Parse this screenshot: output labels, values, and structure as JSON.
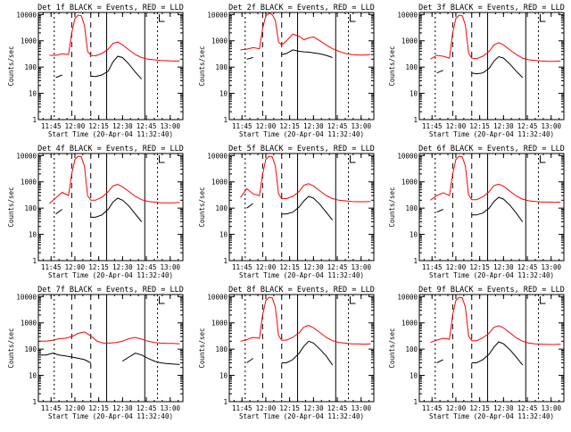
{
  "colors": {
    "events": "#000000",
    "lld": "#ff0000",
    "background": "#ffffff",
    "axis": "#000000"
  },
  "chart_data": [
    {
      "type": "line",
      "title": "Det 1f BLACK = Events, RED = LLD",
      "xlabel": "Start Time (20-Apr-04 11:32:40)",
      "ylabel": "Counts/sec",
      "xticks": [
        "11:45",
        "12:00",
        "12:15",
        "12:30",
        "12:45",
        "13:00"
      ],
      "yticks": [
        "1",
        "10",
        "100",
        "1000",
        "10000"
      ],
      "yscale": "log",
      "ylim": [
        1,
        12000
      ],
      "xlim": [
        "11:37",
        "13:08"
      ],
      "x": [
        "11:44",
        "11:48",
        "11:52",
        "11:56",
        "11:58",
        "12:00",
        "12:02",
        "12:04",
        "12:06",
        "12:08",
        "12:10",
        "12:13",
        "12:17",
        "12:21",
        "12:24",
        "12:27",
        "12:30",
        "12:34",
        "12:38",
        "12:42",
        "12:46",
        "12:50",
        "12:54",
        "12:58",
        "13:02",
        "13:06"
      ],
      "series": [
        {
          "name": "LLD",
          "values": [
            280,
            280,
            320,
            300,
            2000,
            7000,
            9500,
            9000,
            4000,
            400,
            280,
            270,
            330,
            480,
            800,
            900,
            700,
            450,
            300,
            230,
            200,
            190,
            180,
            175,
            170,
            170
          ]
        },
        {
          "name": "Events",
          "values": [
            null,
            40,
            50,
            null,
            null,
            null,
            null,
            null,
            null,
            null,
            45,
            44,
            50,
            70,
            160,
            260,
            230,
            130,
            65,
            35,
            null,
            null,
            null,
            null,
            null,
            null
          ]
        }
      ]
    },
    {
      "type": "line",
      "title": "Det 2f BLACK = Events, RED = LLD",
      "xlabel": "Start Time (20-Apr-04 11:32:40)",
      "ylabel": "Counts/sec",
      "xticks": [
        "11:45",
        "12:00",
        "12:15",
        "12:30",
        "12:45",
        "13:00"
      ],
      "yticks": [
        "1",
        "10",
        "100",
        "1000",
        "10000"
      ],
      "yscale": "log",
      "ylim": [
        1,
        12000
      ],
      "xlim": [
        "11:37",
        "13:08"
      ],
      "x": [
        "11:44",
        "11:48",
        "11:52",
        "11:56",
        "11:58",
        "12:00",
        "12:02",
        "12:04",
        "12:06",
        "12:08",
        "12:10",
        "12:13",
        "12:17",
        "12:21",
        "12:24",
        "12:27",
        "12:30",
        "12:34",
        "12:38",
        "12:42",
        "12:46",
        "12:50",
        "12:54",
        "12:58",
        "13:02",
        "13:06"
      ],
      "series": [
        {
          "name": "LLD",
          "values": [
            450,
            480,
            550,
            500,
            3000,
            9000,
            11000,
            10000,
            6000,
            900,
            700,
            1000,
            1800,
            1500,
            1100,
            1300,
            1400,
            1000,
            700,
            500,
            400,
            330,
            300,
            290,
            290,
            300
          ]
        },
        {
          "name": "Events",
          "values": [
            null,
            200,
            230,
            null,
            null,
            null,
            null,
            null,
            null,
            null,
            300,
            330,
            450,
            400,
            380,
            370,
            350,
            320,
            280,
            230,
            null,
            null,
            null,
            null,
            null,
            null
          ]
        }
      ]
    },
    {
      "type": "line",
      "title": "Det 3f BLACK = Events, RED = LLD",
      "xlabel": "Start Time (20-Apr-04 11:32:40)",
      "ylabel": "Counts/sec",
      "xticks": [
        "11:45",
        "12:00",
        "12:15",
        "12:30",
        "12:45",
        "13:00"
      ],
      "yticks": [
        "1",
        "10",
        "100",
        "1000",
        "10000"
      ],
      "yscale": "log",
      "ylim": [
        1,
        12000
      ],
      "xlim": [
        "11:37",
        "13:08"
      ],
      "x": [
        "11:44",
        "11:48",
        "11:52",
        "11:56",
        "11:58",
        "12:00",
        "12:02",
        "12:04",
        "12:06",
        "12:08",
        "12:10",
        "12:13",
        "12:17",
        "12:21",
        "12:24",
        "12:27",
        "12:30",
        "12:34",
        "12:38",
        "12:42",
        "12:46",
        "12:50",
        "12:54",
        "12:58",
        "13:02",
        "13:06"
      ],
      "series": [
        {
          "name": "LLD",
          "values": [
            200,
            280,
            260,
            220,
            2000,
            7000,
            9500,
            9000,
            4000,
            350,
            220,
            210,
            260,
            400,
            700,
            850,
            700,
            450,
            300,
            220,
            190,
            180,
            170,
            165,
            165,
            170
          ]
        },
        {
          "name": "Events",
          "values": [
            null,
            60,
            75,
            null,
            null,
            null,
            null,
            null,
            null,
            null,
            60,
            55,
            60,
            90,
            170,
            250,
            220,
            130,
            70,
            40,
            null,
            null,
            null,
            null,
            null,
            null
          ]
        }
      ]
    },
    {
      "type": "line",
      "title": "Det 4f BLACK = Events, RED = LLD",
      "xlabel": "Start Time (20-Apr-04 11:32:40)",
      "ylabel": "Counts/sec",
      "xticks": [
        "11:45",
        "12:00",
        "12:15",
        "12:30",
        "12:45",
        "13:00"
      ],
      "yticks": [
        "1",
        "10",
        "100",
        "1000",
        "10000"
      ],
      "yscale": "log",
      "ylim": [
        1,
        12000
      ],
      "xlim": [
        "11:37",
        "13:08"
      ],
      "x": [
        "11:44",
        "11:48",
        "11:52",
        "11:56",
        "11:58",
        "12:00",
        "12:02",
        "12:04",
        "12:06",
        "12:08",
        "12:10",
        "12:13",
        "12:17",
        "12:21",
        "12:24",
        "12:27",
        "12:30",
        "12:34",
        "12:38",
        "12:42",
        "12:46",
        "12:50",
        "12:54",
        "12:58",
        "13:02",
        "13:06"
      ],
      "series": [
        {
          "name": "LLD",
          "values": [
            150,
            250,
            400,
            300,
            2000,
            7000,
            9500,
            9000,
            4000,
            300,
            200,
            200,
            260,
            420,
            700,
            800,
            650,
            430,
            280,
            210,
            180,
            170,
            160,
            160,
            160,
            165
          ]
        },
        {
          "name": "Events",
          "values": [
            null,
            60,
            90,
            null,
            null,
            null,
            null,
            null,
            null,
            null,
            45,
            45,
            55,
            90,
            170,
            240,
            200,
            120,
            60,
            30,
            null,
            null,
            null,
            null,
            null,
            null
          ]
        }
      ]
    },
    {
      "type": "line",
      "title": "Det 5f BLACK = Events, RED = LLD",
      "xlabel": "Start Time (20-Apr-04 11:32:40)",
      "ylabel": "Counts/sec",
      "xticks": [
        "11:45",
        "12:00",
        "12:15",
        "12:30",
        "12:45",
        "13:00"
      ],
      "yticks": [
        "1",
        "10",
        "100",
        "1000",
        "10000"
      ],
      "yscale": "log",
      "ylim": [
        1,
        12000
      ],
      "xlim": [
        "11:37",
        "13:08"
      ],
      "x": [
        "11:44",
        "11:48",
        "11:52",
        "11:56",
        "11:58",
        "12:00",
        "12:02",
        "12:04",
        "12:06",
        "12:08",
        "12:10",
        "12:13",
        "12:17",
        "12:21",
        "12:24",
        "12:27",
        "12:30",
        "12:34",
        "12:38",
        "12:42",
        "12:46",
        "12:50",
        "12:54",
        "12:58",
        "13:02",
        "13:06"
      ],
      "series": [
        {
          "name": "LLD",
          "values": [
            250,
            550,
            350,
            300,
            2000,
            7000,
            9500,
            9000,
            4000,
            350,
            230,
            230,
            280,
            430,
            750,
            850,
            700,
            450,
            300,
            230,
            200,
            190,
            180,
            175,
            175,
            180
          ]
        },
        {
          "name": "Events",
          "values": [
            null,
            100,
            150,
            null,
            null,
            null,
            null,
            null,
            null,
            null,
            60,
            60,
            70,
            110,
            190,
            280,
            240,
            140,
            70,
            35,
            null,
            null,
            null,
            null,
            null,
            null
          ]
        }
      ]
    },
    {
      "type": "line",
      "title": "Det 6f BLACK = Events, RED = LLD",
      "xlabel": "Start Time (20-Apr-04 11:32:40)",
      "ylabel": "Counts/sec",
      "xticks": [
        "11:45",
        "12:00",
        "12:15",
        "12:30",
        "12:45",
        "13:00"
      ],
      "yticks": [
        "1",
        "10",
        "100",
        "1000",
        "10000"
      ],
      "yscale": "log",
      "ylim": [
        1,
        12000
      ],
      "xlim": [
        "11:37",
        "13:08"
      ],
      "x": [
        "11:44",
        "11:48",
        "11:52",
        "11:56",
        "11:58",
        "12:00",
        "12:02",
        "12:04",
        "12:06",
        "12:08",
        "12:10",
        "12:13",
        "12:17",
        "12:21",
        "12:24",
        "12:27",
        "12:30",
        "12:34",
        "12:38",
        "12:42",
        "12:46",
        "12:50",
        "12:54",
        "12:58",
        "13:02",
        "13:06"
      ],
      "series": [
        {
          "name": "LLD",
          "values": [
            200,
            300,
            380,
            300,
            2000,
            7000,
            9500,
            9000,
            4000,
            320,
            210,
            210,
            270,
            420,
            720,
            820,
            680,
            440,
            290,
            220,
            190,
            180,
            170,
            170,
            165,
            170
          ]
        },
        {
          "name": "Events",
          "values": [
            null,
            70,
            90,
            null,
            null,
            null,
            null,
            null,
            null,
            null,
            55,
            55,
            65,
            100,
            180,
            260,
            220,
            130,
            65,
            30,
            null,
            null,
            null,
            null,
            null,
            null
          ]
        }
      ]
    },
    {
      "type": "line",
      "title": "Det 7f BLACK = Events, RED = LLD",
      "xlabel": "Start Time (20-Apr-04 11:32:40)",
      "ylabel": "Counts/sec",
      "xticks": [
        "11:45",
        "12:00",
        "12:15",
        "12:30",
        "12:45",
        "13:00"
      ],
      "yticks": [
        "1",
        "10",
        "100",
        "1000",
        "10000"
      ],
      "yscale": "log",
      "ylim": [
        1,
        12000
      ],
      "xlim": [
        "11:37",
        "13:08"
      ],
      "x": [
        "11:38",
        "11:42",
        "11:46",
        "11:50",
        "11:54",
        "11:58",
        "12:02",
        "12:06",
        "12:10",
        "12:14",
        "12:18",
        "12:22",
        "12:26",
        "12:30",
        "12:34",
        "12:38",
        "12:42",
        "12:46",
        "12:50",
        "12:54",
        "12:58",
        "13:02",
        "13:06"
      ],
      "series": [
        {
          "name": "LLD",
          "values": [
            200,
            200,
            220,
            250,
            260,
            300,
            400,
            450,
            320,
            200,
            170,
            170,
            180,
            200,
            250,
            280,
            240,
            200,
            180,
            170,
            165,
            165,
            160
          ]
        },
        {
          "name": "Events",
          "values": [
            60,
            60,
            70,
            60,
            55,
            50,
            45,
            40,
            30,
            null,
            null,
            null,
            null,
            35,
            50,
            70,
            60,
            45,
            35,
            30,
            28,
            27,
            26
          ]
        }
      ]
    },
    {
      "type": "line",
      "title": "Det 8f BLACK = Events, RED = LLD",
      "xlabel": "Start Time (20-Apr-04 11:32:40)",
      "ylabel": "Counts/sec",
      "xticks": [
        "11:45",
        "12:00",
        "12:15",
        "12:30",
        "12:45",
        "13:00"
      ],
      "yticks": [
        "1",
        "10",
        "100",
        "1000",
        "10000"
      ],
      "yscale": "log",
      "ylim": [
        1,
        12000
      ],
      "xlim": [
        "11:37",
        "13:08"
      ],
      "x": [
        "11:44",
        "11:48",
        "11:52",
        "11:56",
        "11:58",
        "12:00",
        "12:02",
        "12:04",
        "12:06",
        "12:08",
        "12:10",
        "12:13",
        "12:17",
        "12:21",
        "12:24",
        "12:27",
        "12:30",
        "12:34",
        "12:38",
        "12:42",
        "12:46",
        "12:50",
        "12:54",
        "12:58",
        "13:02",
        "13:06"
      ],
      "series": [
        {
          "name": "LLD",
          "values": [
            200,
            230,
            280,
            260,
            2000,
            7000,
            9500,
            9000,
            4000,
            330,
            220,
            220,
            280,
            420,
            700,
            800,
            650,
            430,
            280,
            210,
            180,
            170,
            160,
            160,
            155,
            160
          ]
        },
        {
          "name": "Events",
          "values": [
            null,
            30,
            45,
            null,
            null,
            null,
            null,
            null,
            null,
            null,
            30,
            30,
            40,
            70,
            130,
            200,
            170,
            100,
            55,
            25,
            null,
            null,
            null,
            null,
            null,
            null
          ]
        }
      ]
    },
    {
      "type": "line",
      "title": "Det 9f BLACK = Events, RED = LLD",
      "xlabel": "Start Time (20-Apr-04 11:32:40)",
      "ylabel": "Counts/sec",
      "xticks": [
        "11:45",
        "12:00",
        "12:15",
        "12:30",
        "12:45",
        "13:00"
      ],
      "yticks": [
        "1",
        "10",
        "100",
        "1000",
        "10000"
      ],
      "yscale": "log",
      "ylim": [
        1,
        12000
      ],
      "xlim": [
        "11:37",
        "13:08"
      ],
      "x": [
        "11:44",
        "11:48",
        "11:52",
        "11:56",
        "11:58",
        "12:00",
        "12:02",
        "12:04",
        "12:06",
        "12:08",
        "12:10",
        "12:13",
        "12:17",
        "12:21",
        "12:24",
        "12:27",
        "12:30",
        "12:34",
        "12:38",
        "12:42",
        "12:46",
        "12:50",
        "12:54",
        "12:58",
        "13:02",
        "13:06"
      ],
      "series": [
        {
          "name": "LLD",
          "values": [
            180,
            220,
            260,
            240,
            2000,
            7000,
            9500,
            9000,
            4000,
            320,
            210,
            210,
            270,
            410,
            680,
            780,
            640,
            420,
            270,
            200,
            170,
            160,
            155,
            150,
            150,
            155
          ]
        },
        {
          "name": "Events",
          "values": [
            null,
            30,
            40,
            null,
            null,
            null,
            null,
            null,
            null,
            null,
            30,
            30,
            40,
            65,
            120,
            190,
            160,
            95,
            50,
            25,
            null,
            null,
            null,
            null,
            null,
            null
          ]
        }
      ]
    }
  ]
}
